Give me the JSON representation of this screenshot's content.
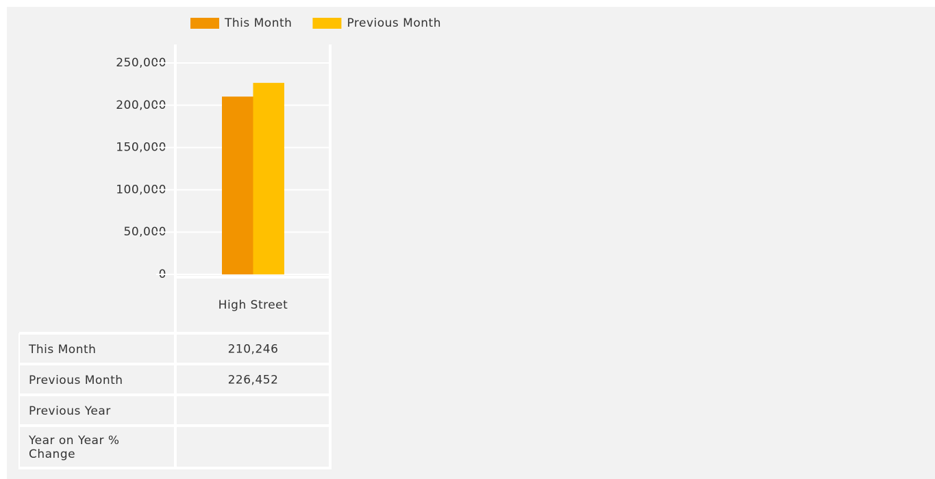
{
  "chart_data": {
    "type": "bar",
    "categories": [
      "High Street"
    ],
    "series": [
      {
        "name": "This Month",
        "color": "#f29400",
        "values": [
          210246
        ],
        "value_labels": [
          "210,246"
        ]
      },
      {
        "name": "Previous Month",
        "color": "#ffc000",
        "values": [
          226452
        ],
        "value_labels": [
          "226,452"
        ]
      }
    ],
    "ylim": [
      0,
      250000
    ],
    "yticks": [
      0,
      {
        "value": 50000,
        "label": "50,000"
      },
      {
        "value": 100000,
        "label": "100,000"
      },
      {
        "value": 150000,
        "label": "150,000"
      },
      {
        "value": 200000,
        "label": "200,000"
      },
      {
        "value": 250000,
        "label": "250,000"
      }
    ],
    "grid": true,
    "table_rows": [
      "This Month",
      "Previous Month",
      "Previous Year",
      "Year on Year % Change"
    ]
  }
}
